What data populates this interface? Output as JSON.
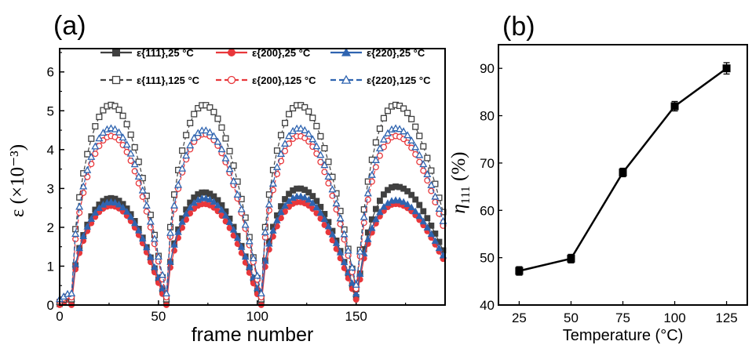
{
  "chart_data": [
    {
      "panel": "(a)",
      "type": "scatter",
      "xlabel": "frame number",
      "ylabel": "ε (×10⁻³)",
      "xlim": [
        0,
        195
      ],
      "ylim": [
        0,
        6.6
      ],
      "xticks": [
        "0",
        "50",
        "100",
        "150"
      ],
      "yticks": [
        "0",
        "1",
        "2",
        "3",
        "4",
        "5",
        "6"
      ],
      "legend_position": "top",
      "series": [
        {
          "name": "ε{111},25 °C",
          "color": "#404040",
          "marker": "square",
          "filled": true,
          "baseline": 0.05,
          "valley_depth": 0.05,
          "peaks": [
            2.75,
            2.9,
            3.0,
            3.05
          ]
        },
        {
          "name": "ε{200},25 °C",
          "color": "#e8373b",
          "marker": "circle",
          "filled": true,
          "baseline": 0.0,
          "valley_depth": 0.0,
          "peaks": [
            2.55,
            2.6,
            2.65,
            2.6
          ]
        },
        {
          "name": "ε{220},25 °C",
          "color": "#2f64b0",
          "marker": "triangle",
          "filled": true,
          "baseline": 0.15,
          "valley_depth": 0.2,
          "peaks": [
            2.65,
            2.75,
            2.8,
            2.7
          ]
        },
        {
          "name": "ε{111},125 °C",
          "color": "#404040",
          "marker": "square",
          "filled": false,
          "baseline": 0.15,
          "valley_depth": 2.3,
          "peaks": [
            5.15,
            5.15,
            5.15,
            5.15
          ]
        },
        {
          "name": "ε{200},125 °C",
          "color": "#e8373b",
          "marker": "circle",
          "filled": false,
          "baseline": 0.2,
          "valley_depth": 0.4,
          "peaks": [
            4.35,
            4.4,
            4.35,
            4.35
          ]
        },
        {
          "name": "ε{220},125 °C",
          "color": "#2f64b0",
          "marker": "triangle",
          "filled": false,
          "baseline": 0.3,
          "valley_depth": 1.4,
          "peaks": [
            4.55,
            4.5,
            4.55,
            4.55
          ]
        }
      ],
      "peak_frames": [
        26,
        73,
        121,
        170
      ],
      "valley_frames": [
        6,
        54,
        102,
        151,
        195
      ]
    },
    {
      "panel": "(b)",
      "type": "line",
      "xlabel": "Temperature (°C)",
      "ylabel": "η111 (%)",
      "ylabel_main": "η",
      "ylabel_sub": "111",
      "ylabel_unit": " (%)",
      "xlim": [
        15,
        135
      ],
      "ylim": [
        40,
        95
      ],
      "xticks": [
        "25",
        "50",
        "75",
        "100",
        "125"
      ],
      "yticks": [
        "40",
        "50",
        "60",
        "70",
        "80",
        "90"
      ],
      "x": [
        25,
        50,
        75,
        100,
        125
      ],
      "y": [
        47.2,
        49.8,
        68.0,
        82.0,
        90.0
      ],
      "err": [
        0.9,
        0.9,
        0.9,
        1.0,
        1.2
      ],
      "color": "#000000"
    }
  ]
}
